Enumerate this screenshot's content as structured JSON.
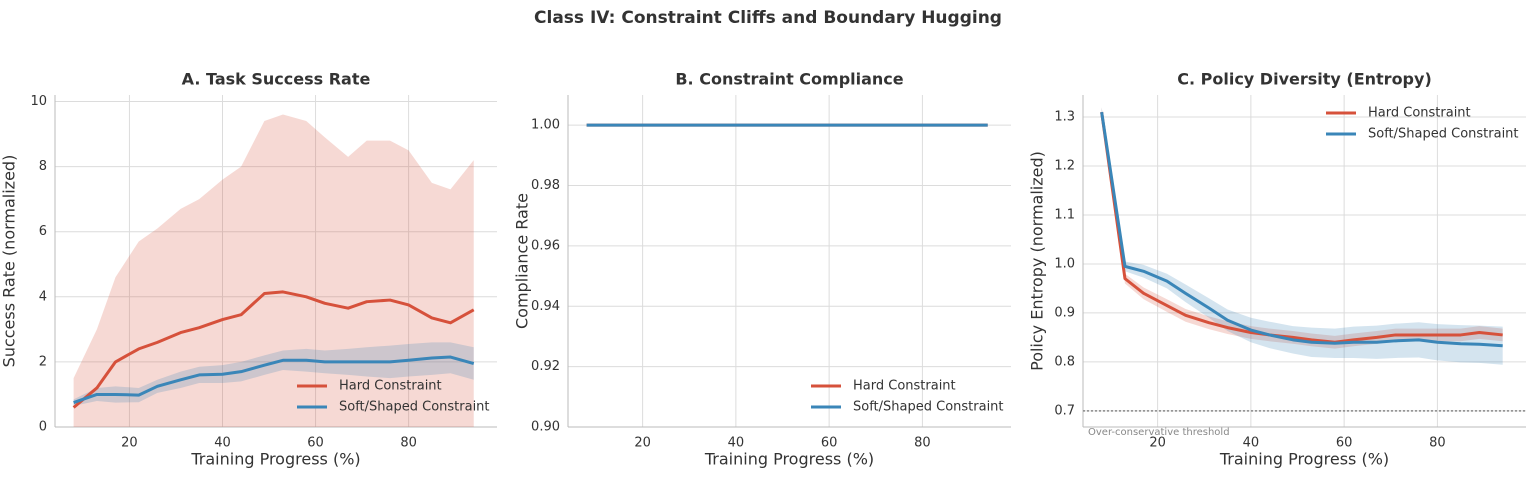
{
  "title": "Class IV: Constraint Cliffs and Boundary Hugging",
  "chart_data": [
    {
      "type": "line",
      "title": "A. Task Success Rate",
      "xlabel": "Training Progress (%)",
      "ylabel": "Success Rate (normalized)",
      "x": [
        8,
        13,
        17,
        22,
        26,
        31,
        35,
        40,
        44,
        49,
        53,
        58,
        62,
        67,
        71,
        76,
        80,
        85,
        89,
        94
      ],
      "xlim": [
        4,
        99
      ],
      "xticks": [
        20,
        40,
        60,
        80
      ],
      "ylim": [
        0,
        10.2
      ],
      "yticks": [
        0,
        2,
        4,
        6,
        8,
        10
      ],
      "grid": true,
      "legend": "lower right",
      "series": [
        {
          "name": "Hard Constraint",
          "color": "#d6513b",
          "values": [
            0.6,
            1.2,
            2.0,
            2.4,
            2.6,
            2.9,
            3.05,
            3.3,
            3.45,
            4.1,
            4.15,
            4.0,
            3.8,
            3.65,
            3.85,
            3.9,
            3.75,
            3.35,
            3.2,
            3.6
          ],
          "upper": [
            1.5,
            3.0,
            4.6,
            5.7,
            6.1,
            6.7,
            7.0,
            7.6,
            8.0,
            9.4,
            9.6,
            9.4,
            8.9,
            8.3,
            8.8,
            8.8,
            8.5,
            7.5,
            7.3,
            8.2
          ],
          "lower": [
            0,
            0,
            0,
            0,
            0,
            0,
            0,
            0,
            0,
            0,
            0,
            0,
            0,
            0,
            0,
            0,
            0,
            0,
            0,
            0
          ]
        },
        {
          "name": "Soft/Shaped Constraint",
          "color": "#3a86b8",
          "values": [
            0.75,
            1.0,
            1.0,
            0.98,
            1.25,
            1.45,
            1.6,
            1.62,
            1.7,
            1.9,
            2.05,
            2.05,
            2.0,
            2.0,
            2.0,
            2.0,
            2.05,
            2.12,
            2.15,
            1.95
          ],
          "upper": [
            0.85,
            1.2,
            1.25,
            1.2,
            1.45,
            1.7,
            1.85,
            1.9,
            2.0,
            2.2,
            2.35,
            2.4,
            2.35,
            2.4,
            2.45,
            2.5,
            2.55,
            2.6,
            2.6,
            2.45
          ],
          "lower": [
            0.65,
            0.8,
            0.75,
            0.76,
            1.05,
            1.2,
            1.35,
            1.35,
            1.4,
            1.6,
            1.75,
            1.7,
            1.65,
            1.6,
            1.55,
            1.5,
            1.55,
            1.6,
            1.65,
            1.45
          ]
        }
      ]
    },
    {
      "type": "line",
      "title": "B. Constraint Compliance",
      "xlabel": "Training Progress (%)",
      "ylabel": "Compliance Rate",
      "x": [
        8,
        13,
        17,
        22,
        26,
        31,
        35,
        40,
        44,
        49,
        53,
        58,
        62,
        67,
        71,
        76,
        80,
        85,
        89,
        94
      ],
      "xlim": [
        4,
        99
      ],
      "xticks": [
        20,
        40,
        60,
        80
      ],
      "ylim": [
        0.9,
        1.01
      ],
      "yticks": [
        {
          "value": 0.9,
          "label": "0.90"
        },
        {
          "value": 0.92,
          "label": "0.92"
        },
        {
          "value": 0.94,
          "label": "0.94"
        },
        {
          "value": 0.96,
          "label": "0.96"
        },
        {
          "value": 0.98,
          "label": "0.98"
        },
        {
          "value": 1,
          "label": "1.00"
        }
      ],
      "grid": true,
      "legend": "lower right",
      "series": [
        {
          "name": "Hard Constraint",
          "color": "#d6513b",
          "values": [
            1,
            1,
            1,
            1,
            1,
            1,
            1,
            1,
            1,
            1,
            1,
            1,
            1,
            1,
            1,
            1,
            1,
            1,
            1,
            1
          ]
        },
        {
          "name": "Soft/Shaped Constraint",
          "color": "#3a86b8",
          "values": [
            1,
            1,
            1,
            1,
            1,
            1,
            1,
            1,
            1,
            1,
            1,
            1,
            1,
            1,
            1,
            1,
            1,
            1,
            1,
            1
          ]
        }
      ]
    },
    {
      "type": "line",
      "title": "C. Policy Diversity (Entropy)",
      "xlabel": "Training Progress (%)",
      "ylabel": "Policy Entropy (normalized)",
      "x": [
        8,
        13,
        17,
        22,
        26,
        31,
        35,
        40,
        44,
        49,
        53,
        58,
        62,
        67,
        71,
        76,
        80,
        85,
        89,
        94
      ],
      "xlim": [
        4,
        99
      ],
      "xticks": [
        20,
        40,
        60,
        80
      ],
      "ylim": [
        0.667,
        1.345
      ],
      "yticks": [
        0.7,
        0.8,
        0.9,
        {
          "value": 1,
          "label": "1.0"
        },
        1.1,
        1.2,
        1.3
      ],
      "grid": true,
      "legend": "upper right",
      "threshold": {
        "value": 0.7,
        "label": "Over-conservative threshold"
      },
      "series": [
        {
          "name": "Hard Constraint",
          "color": "#d6513b",
          "values": [
            1.31,
            0.97,
            0.94,
            0.915,
            0.895,
            0.88,
            0.87,
            0.86,
            0.855,
            0.85,
            0.845,
            0.84,
            0.845,
            0.85,
            0.855,
            0.855,
            0.855,
            0.855,
            0.86,
            0.855
          ],
          "upper": [
            1.32,
            0.98,
            0.952,
            0.928,
            0.908,
            0.893,
            0.883,
            0.873,
            0.868,
            0.863,
            0.858,
            0.853,
            0.858,
            0.863,
            0.868,
            0.868,
            0.868,
            0.868,
            0.873,
            0.868
          ],
          "lower": [
            1.3,
            0.96,
            0.928,
            0.902,
            0.882,
            0.867,
            0.857,
            0.847,
            0.842,
            0.837,
            0.832,
            0.827,
            0.832,
            0.837,
            0.842,
            0.842,
            0.842,
            0.842,
            0.847,
            0.842
          ]
        },
        {
          "name": "Soft/Shaped Constraint",
          "color": "#3a86b8",
          "values": [
            1.31,
            0.995,
            0.985,
            0.965,
            0.94,
            0.91,
            0.885,
            0.865,
            0.855,
            0.845,
            0.84,
            0.838,
            0.84,
            0.84,
            0.843,
            0.845,
            0.84,
            0.837,
            0.836,
            0.833
          ],
          "upper": [
            1.32,
            1.005,
            0.998,
            0.98,
            0.958,
            0.93,
            0.907,
            0.89,
            0.882,
            0.873,
            0.87,
            0.868,
            0.872,
            0.874,
            0.878,
            0.881,
            0.877,
            0.875,
            0.874,
            0.872
          ],
          "lower": [
            1.3,
            0.985,
            0.972,
            0.95,
            0.922,
            0.89,
            0.863,
            0.84,
            0.828,
            0.817,
            0.81,
            0.808,
            0.808,
            0.806,
            0.808,
            0.809,
            0.803,
            0.799,
            0.798,
            0.794
          ]
        }
      ]
    }
  ]
}
